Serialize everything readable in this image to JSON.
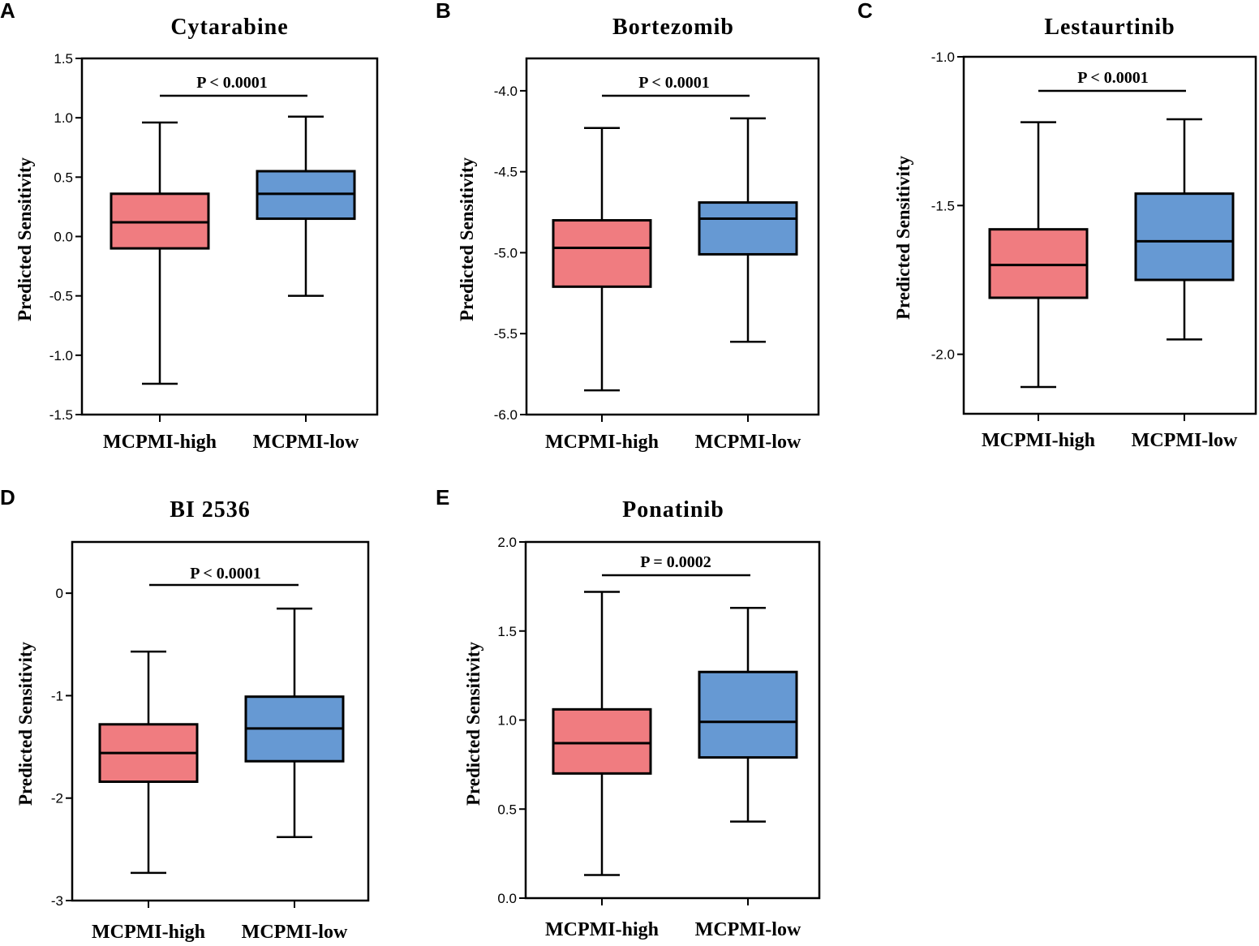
{
  "colors": {
    "high": "#F07C80",
    "low": "#6699D3",
    "ink": "#000000"
  },
  "chart_data": [
    {
      "panel": "A",
      "type": "box",
      "title": "Cytarabine",
      "ylabel": "Predicted Sensitivity",
      "ylim": [
        -1.5,
        1.5
      ],
      "ticks": [
        -1.5,
        -1.0,
        -0.5,
        0.0,
        0.5,
        1.0,
        1.5
      ],
      "tick_labels": [
        "-1.5",
        "-1.0",
        "-0.5",
        "0.0",
        "0.5",
        "1.0",
        "1.5"
      ],
      "categories": [
        "MCPMI-high",
        "MCPMI-low"
      ],
      "boxes": [
        {
          "name": "MCPMI-high",
          "min": -1.24,
          "q1": -0.1,
          "median": 0.12,
          "q3": 0.36,
          "max": 0.96
        },
        {
          "name": "MCPMI-low",
          "min": -0.5,
          "q1": 0.15,
          "median": 0.36,
          "q3": 0.55,
          "max": 1.01
        }
      ],
      "annotation": "P < 0.0001"
    },
    {
      "panel": "B",
      "type": "box",
      "title": "Bortezomib",
      "ylabel": "Predicted Sensitivity",
      "ylim": [
        -6.0,
        -3.8
      ],
      "ticks": [
        -6.0,
        -5.5,
        -5.0,
        -4.5,
        -4.0
      ],
      "tick_labels": [
        "-6.0",
        "-5.5",
        "-5.0",
        "-4.5",
        "-4.0"
      ],
      "categories": [
        "MCPMI-high",
        "MCPMI-low"
      ],
      "boxes": [
        {
          "name": "MCPMI-high",
          "min": -5.85,
          "q1": -5.21,
          "median": -4.97,
          "q3": -4.8,
          "max": -4.23
        },
        {
          "name": "MCPMI-low",
          "min": -5.55,
          "q1": -5.01,
          "median": -4.79,
          "q3": -4.69,
          "max": -4.17
        }
      ],
      "annotation": "P < 0.0001"
    },
    {
      "panel": "C",
      "type": "box",
      "title": "Lestaurtinib",
      "ylabel": "Predicted Sensitivity",
      "ylim": [
        -2.2,
        -1.0
      ],
      "ticks": [
        -2.0,
        -1.5,
        -1.0
      ],
      "tick_labels": [
        "-2.0",
        "-1.5",
        "-1.0"
      ],
      "categories": [
        "MCPMI-high",
        "MCPMI-low"
      ],
      "boxes": [
        {
          "name": "MCPMI-high",
          "min": -2.11,
          "q1": -1.81,
          "median": -1.7,
          "q3": -1.58,
          "max": -1.22
        },
        {
          "name": "MCPMI-low",
          "min": -1.95,
          "q1": -1.75,
          "median": -1.62,
          "q3": -1.46,
          "max": -1.21
        }
      ],
      "annotation": "P < 0.0001"
    },
    {
      "panel": "D",
      "type": "box",
      "title": "BI 2536",
      "ylabel": "Predicted Sensitivity",
      "ylim": [
        -3.0,
        0.5
      ],
      "ticks": [
        -3,
        -2,
        -1,
        0
      ],
      "tick_labels": [
        "-3",
        "-2",
        "-1",
        "0"
      ],
      "categories": [
        "MCPMI-high",
        "MCPMI-low"
      ],
      "boxes": [
        {
          "name": "MCPMI-high",
          "min": -2.73,
          "q1": -1.84,
          "median": -1.56,
          "q3": -1.28,
          "max": -0.57
        },
        {
          "name": "MCPMI-low",
          "min": -2.38,
          "q1": -1.64,
          "median": -1.32,
          "q3": -1.01,
          "max": -0.15
        }
      ],
      "annotation": "P < 0.0001"
    },
    {
      "panel": "E",
      "type": "box",
      "title": "Ponatinib",
      "ylabel": "Predicted Sensitivity",
      "ylim": [
        0.0,
        2.0
      ],
      "ticks": [
        0.0,
        0.5,
        1.0,
        1.5,
        2.0
      ],
      "tick_labels": [
        "0.0",
        "0.5",
        "1.0",
        "1.5",
        "2.0"
      ],
      "categories": [
        "MCPMI-high",
        "MCPMI-low"
      ],
      "boxes": [
        {
          "name": "MCPMI-high",
          "min": 0.13,
          "q1": 0.7,
          "median": 0.87,
          "q3": 1.06,
          "max": 1.72
        },
        {
          "name": "MCPMI-low",
          "min": 0.43,
          "q1": 0.79,
          "median": 0.99,
          "q3": 1.27,
          "max": 1.63
        }
      ],
      "annotation": "P = 0.0002"
    }
  ]
}
